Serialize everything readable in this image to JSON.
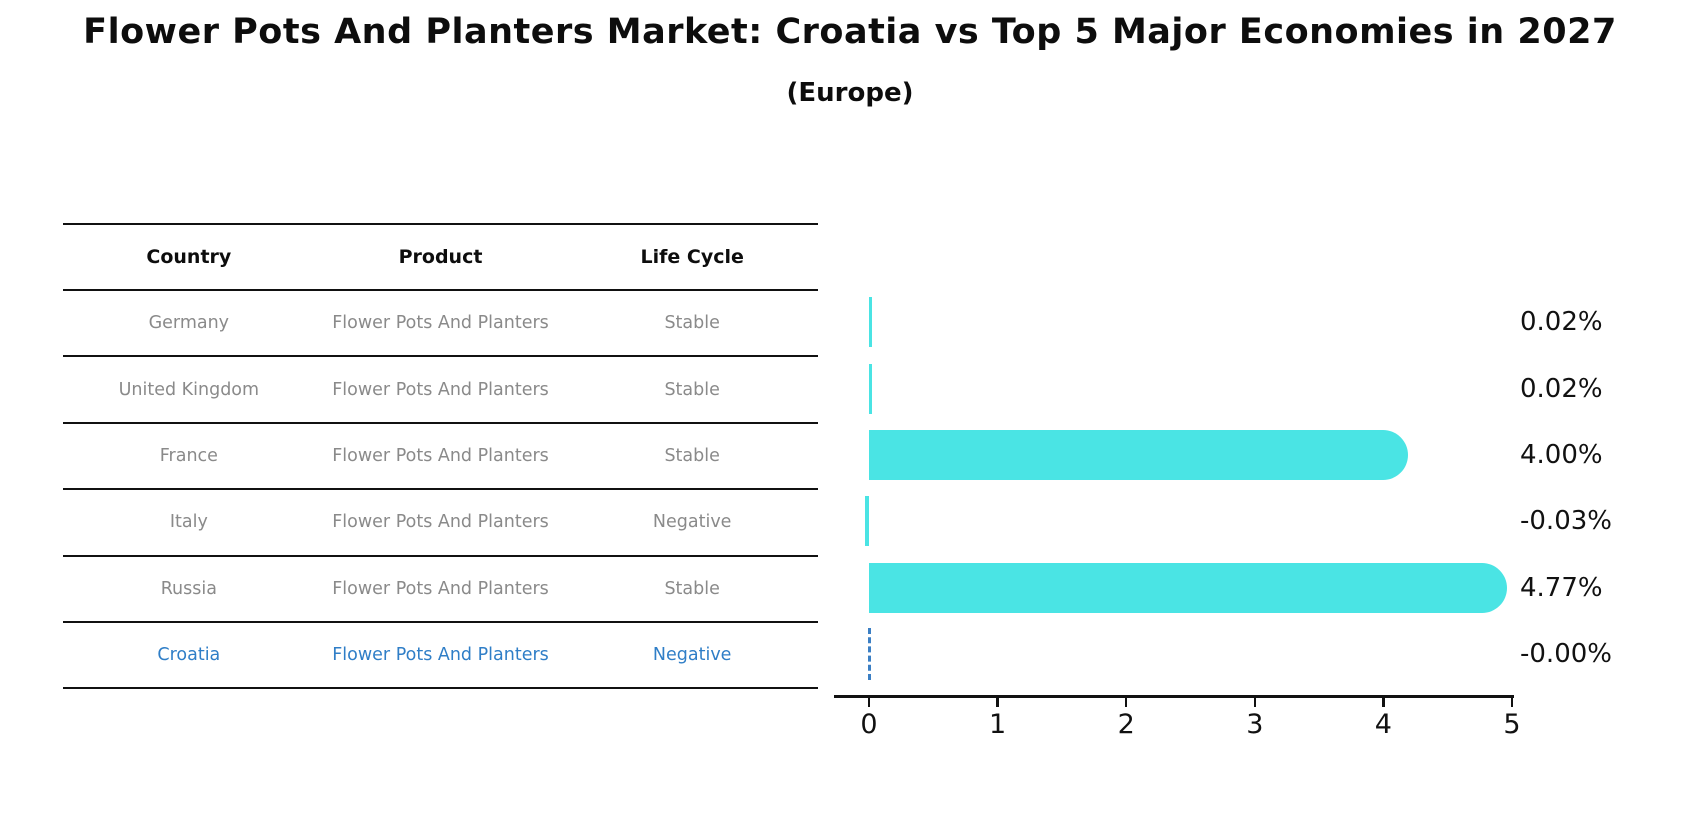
{
  "title": "Flower Pots And Planters Market: Croatia vs Top 5 Major Economies in 2027",
  "subtitle": "(Europe)",
  "table": {
    "headers": [
      "Country",
      "Product",
      "Life Cycle"
    ],
    "rows": [
      {
        "country": "Germany",
        "product": "Flower Pots And Planters",
        "life_cycle": "Stable",
        "highlight": false
      },
      {
        "country": "United Kingdom",
        "product": "Flower Pots And Planters",
        "life_cycle": "Stable",
        "highlight": false
      },
      {
        "country": "France",
        "product": "Flower Pots And Planters",
        "life_cycle": "Stable",
        "highlight": false
      },
      {
        "country": "Italy",
        "product": "Flower Pots And Planters",
        "life_cycle": "Negative",
        "highlight": false
      },
      {
        "country": "Russia",
        "product": "Flower Pots And Planters",
        "life_cycle": "Stable",
        "highlight": false
      },
      {
        "country": "Croatia",
        "product": "Flower Pots And Planters",
        "life_cycle": "Negative",
        "highlight": true
      }
    ]
  },
  "chart_data": {
    "type": "bar",
    "orientation": "horizontal",
    "title": "Flower Pots And Planters Market: Croatia vs Top 5 Major Economies in 2027 (Europe)",
    "categories": [
      "Germany",
      "United Kingdom",
      "France",
      "Italy",
      "Russia",
      "Croatia"
    ],
    "values": [
      0.02,
      0.02,
      4.0,
      -0.03,
      4.77,
      -0.0
    ],
    "value_labels": [
      "0.02%",
      "0.02%",
      "4.00%",
      "-0.03%",
      "4.77%",
      "-0.00%"
    ],
    "x_ticks": [
      "0",
      "1",
      "2",
      "3",
      "4",
      "5"
    ],
    "xlim": [
      -0.27,
      5
    ],
    "grid": false,
    "legend": false,
    "bar_color": "#4AE4E4",
    "highlight_color": "#2f7ec7",
    "zero_marker_style": "dashed-blue-line-for-croatia"
  }
}
